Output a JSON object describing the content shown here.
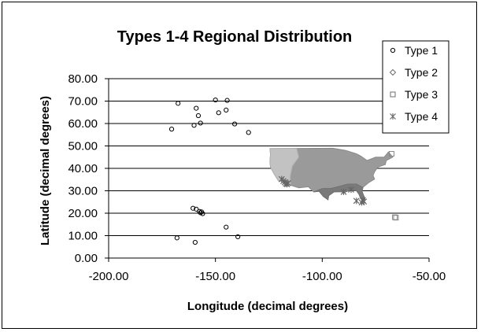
{
  "chart_data": {
    "type": "scatter",
    "title": "Types 1-4 Regional Distribution",
    "xlabel": "Longitude (decimal degrees)",
    "ylabel": "Latitude (decimal degrees)",
    "xlim": [
      -200,
      -50
    ],
    "ylim": [
      0,
      80
    ],
    "x_ticks": [
      -200,
      -150,
      -100,
      -50
    ],
    "x_tick_labels": [
      "-200.00",
      "-150.00",
      "-100.00",
      "-50.00"
    ],
    "y_ticks": [
      0,
      10,
      20,
      30,
      40,
      50,
      60,
      70,
      80
    ],
    "y_tick_labels": [
      "0.00",
      "10.00",
      "20.00",
      "30.00",
      "40.00",
      "50.00",
      "60.00",
      "70.00",
      "80.00"
    ],
    "grid": "horizontal",
    "legend_position": "top-right",
    "series": [
      {
        "name": "Type 1",
        "marker": "circle",
        "color": "#000000",
        "points": [
          [
            -170.5,
            57.5
          ],
          [
            -167.5,
            69.0
          ],
          [
            -159.0,
            66.8
          ],
          [
            -160.0,
            59.2
          ],
          [
            -158.0,
            63.5
          ],
          [
            -157.0,
            60.2
          ],
          [
            -150.0,
            70.5
          ],
          [
            -148.5,
            64.8
          ],
          [
            -145.0,
            66.0
          ],
          [
            -144.5,
            70.3
          ],
          [
            -141.0,
            59.8
          ],
          [
            -134.5,
            56.0
          ],
          [
            -160.5,
            22.2
          ],
          [
            -159.0,
            21.8
          ],
          [
            -157.5,
            20.8
          ],
          [
            -157.0,
            20.2
          ],
          [
            -156.5,
            20.6
          ],
          [
            -156.0,
            19.8
          ],
          [
            -145.0,
            13.8
          ],
          [
            -139.5,
            9.5
          ],
          [
            -168.0,
            9.0
          ],
          [
            -159.5,
            7.0
          ]
        ]
      },
      {
        "name": "Type 2",
        "marker": "diamond",
        "color": "#bdbdbd",
        "region": "western United States",
        "points": []
      },
      {
        "name": "Type 3",
        "marker": "square",
        "color": "#8a8a8a",
        "region": "contiguous United States",
        "points": [
          [
            -67.5,
            46.5
          ],
          [
            -66.0,
            18.2
          ],
          [
            -65.5,
            18.0
          ]
        ]
      },
      {
        "name": "Type 4",
        "marker": "star",
        "color": "#666666",
        "region": "southern United States and Gulf coast",
        "points": [
          [
            -119.0,
            35.2
          ],
          [
            -118.2,
            34.3
          ],
          [
            -117.5,
            33.8
          ],
          [
            -117.0,
            33.2
          ],
          [
            -116.5,
            32.9
          ],
          [
            -116.0,
            33.4
          ],
          [
            -84.0,
            25.5
          ],
          [
            -81.5,
            24.8
          ],
          [
            -81.0,
            25.8
          ],
          [
            -80.5,
            25.2
          ],
          [
            -86.5,
            30.5
          ],
          [
            -90.0,
            29.5
          ]
        ]
      }
    ]
  }
}
